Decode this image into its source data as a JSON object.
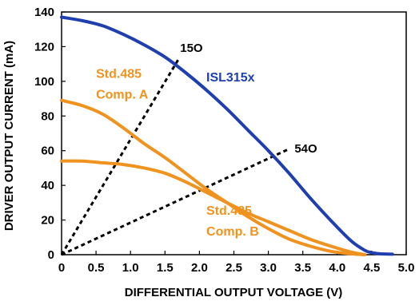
{
  "chart_data": {
    "type": "line",
    "title": "",
    "xlabel": "DIFFERENTIAL OUTPUT VOLTAGE (V)",
    "ylabel": "DRIVER OUTPUT CURRENT (mA)",
    "xlim": [
      0,
      5.0
    ],
    "ylim": [
      0,
      140
    ],
    "xticks": [
      "0",
      "0.5",
      "1.0",
      "1.5",
      "2.0",
      "2.5",
      "3.0",
      "3.5",
      "4.0",
      "4.5",
      "5.0"
    ],
    "yticks": [
      "0",
      "20",
      "40",
      "60",
      "80",
      "100",
      "120",
      "140"
    ],
    "grid": false,
    "series": [
      {
        "name": "ISL315x",
        "color": "#1f3fb0",
        "x": [
          0,
          0.3,
          0.6,
          0.9,
          1.2,
          1.5,
          1.8,
          2.1,
          2.4,
          2.7,
          3.0,
          3.3,
          3.6,
          3.9,
          4.2,
          4.4,
          4.5,
          4.6,
          4.7,
          4.8
        ],
        "y": [
          137,
          135,
          132,
          127,
          121,
          114,
          105,
          95,
          84,
          72,
          60,
          47,
          33,
          20,
          8,
          2.5,
          1.2,
          0.6,
          0.4,
          0.3
        ]
      },
      {
        "name": "Std.485 Comp. A",
        "color": "#f0921e",
        "x": [
          0,
          0.3,
          0.6,
          0.9,
          1.2,
          1.5,
          1.8,
          2.1,
          2.4,
          2.7,
          3.0,
          3.3,
          3.6,
          3.9,
          4.2,
          4.4
        ],
        "y": [
          89,
          86,
          81,
          73,
          64,
          56,
          47,
          38,
          30,
          22,
          15,
          9,
          5,
          2,
          0.5,
          0
        ]
      },
      {
        "name": "Std.485 Comp. B",
        "color": "#f0921e",
        "x": [
          0,
          0.3,
          0.6,
          0.9,
          1.2,
          1.5,
          1.8,
          2.1,
          2.4,
          2.7,
          3.0,
          3.3,
          3.6,
          3.9,
          4.2,
          4.4
        ],
        "y": [
          54,
          54,
          53,
          52,
          50,
          47,
          42,
          36,
          30,
          24,
          19,
          14,
          9,
          5,
          1.5,
          0
        ]
      }
    ],
    "load_lines": [
      {
        "label": "15Ω",
        "x": [
          0,
          1.7
        ],
        "y": [
          0,
          113
        ]
      },
      {
        "label": "54Ω",
        "x": [
          0,
          3.3
        ],
        "y": [
          0,
          61
        ]
      }
    ],
    "annotations": [
      {
        "text": "ISL315x",
        "series": "ISL315x",
        "x": 2.1,
        "y": 100
      },
      {
        "text": "Std.485",
        "series": "Std.485 Comp. A",
        "x": 0.5,
        "y": 102
      },
      {
        "text": "Comp. A",
        "series": "Std.485 Comp. A",
        "x": 0.5,
        "y": 90
      },
      {
        "text": "Std.485",
        "series": "Std.485 Comp. B",
        "x": 2.1,
        "y": 23
      },
      {
        "text": "Comp. B",
        "series": "Std.485 Comp. B",
        "x": 2.1,
        "y": 11
      },
      {
        "text": "15O",
        "series": "15Ω",
        "x": 1.72,
        "y": 117
      },
      {
        "text": "54O",
        "series": "54Ω",
        "x": 3.38,
        "y": 59
      }
    ]
  }
}
